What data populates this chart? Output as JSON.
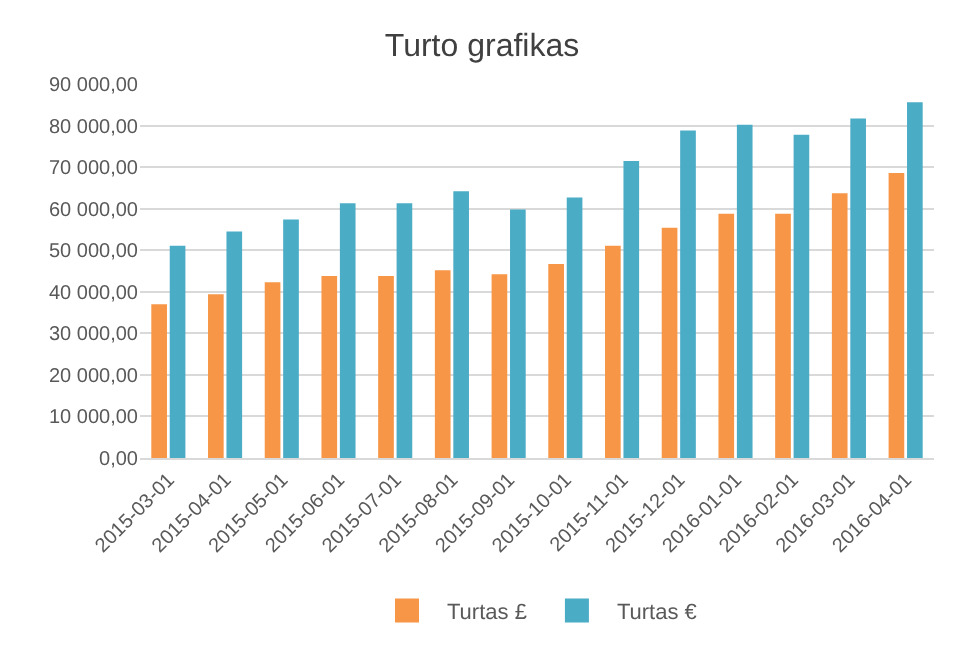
{
  "chart_data": {
    "type": "bar",
    "title": "Turto grafikas",
    "categories": [
      "2015-03-01",
      "2015-04-01",
      "2015-05-01",
      "2015-06-01",
      "2015-07-01",
      "2015-08-01",
      "2015-09-01",
      "2015-10-01",
      "2015-11-01",
      "2015-12-01",
      "2016-01-01",
      "2016-02-01",
      "2016-03-01",
      "2016-04-01"
    ],
    "series": [
      {
        "name": "Turtas £",
        "color": "#f79646",
        "values": [
          37000,
          39400,
          42300,
          43800,
          43800,
          45200,
          44200,
          46700,
          51100,
          55400,
          58800,
          58800,
          63700,
          68600
        ]
      },
      {
        "name": "Turtas €",
        "color": "#4bacc6",
        "values": [
          51100,
          54500,
          57400,
          61300,
          61300,
          64200,
          59800,
          62700,
          71500,
          78800,
          80200,
          77800,
          81700,
          85600
        ]
      }
    ],
    "ylim": [
      0,
      90000
    ],
    "yticks": [
      {
        "value": 0,
        "label": "0,00"
      },
      {
        "value": 10000,
        "label": "10 000,00"
      },
      {
        "value": 20000,
        "label": "20 000,00"
      },
      {
        "value": 30000,
        "label": "30 000,00"
      },
      {
        "value": 40000,
        "label": "40 000,00"
      },
      {
        "value": 50000,
        "label": "50 000,00"
      },
      {
        "value": 60000,
        "label": "60 000,00"
      },
      {
        "value": 70000,
        "label": "70 000,00"
      },
      {
        "value": 80000,
        "label": "80 000,00"
      },
      {
        "value": 90000,
        "label": "90 000,00"
      }
    ],
    "grid": "y",
    "legend": "bottom"
  }
}
